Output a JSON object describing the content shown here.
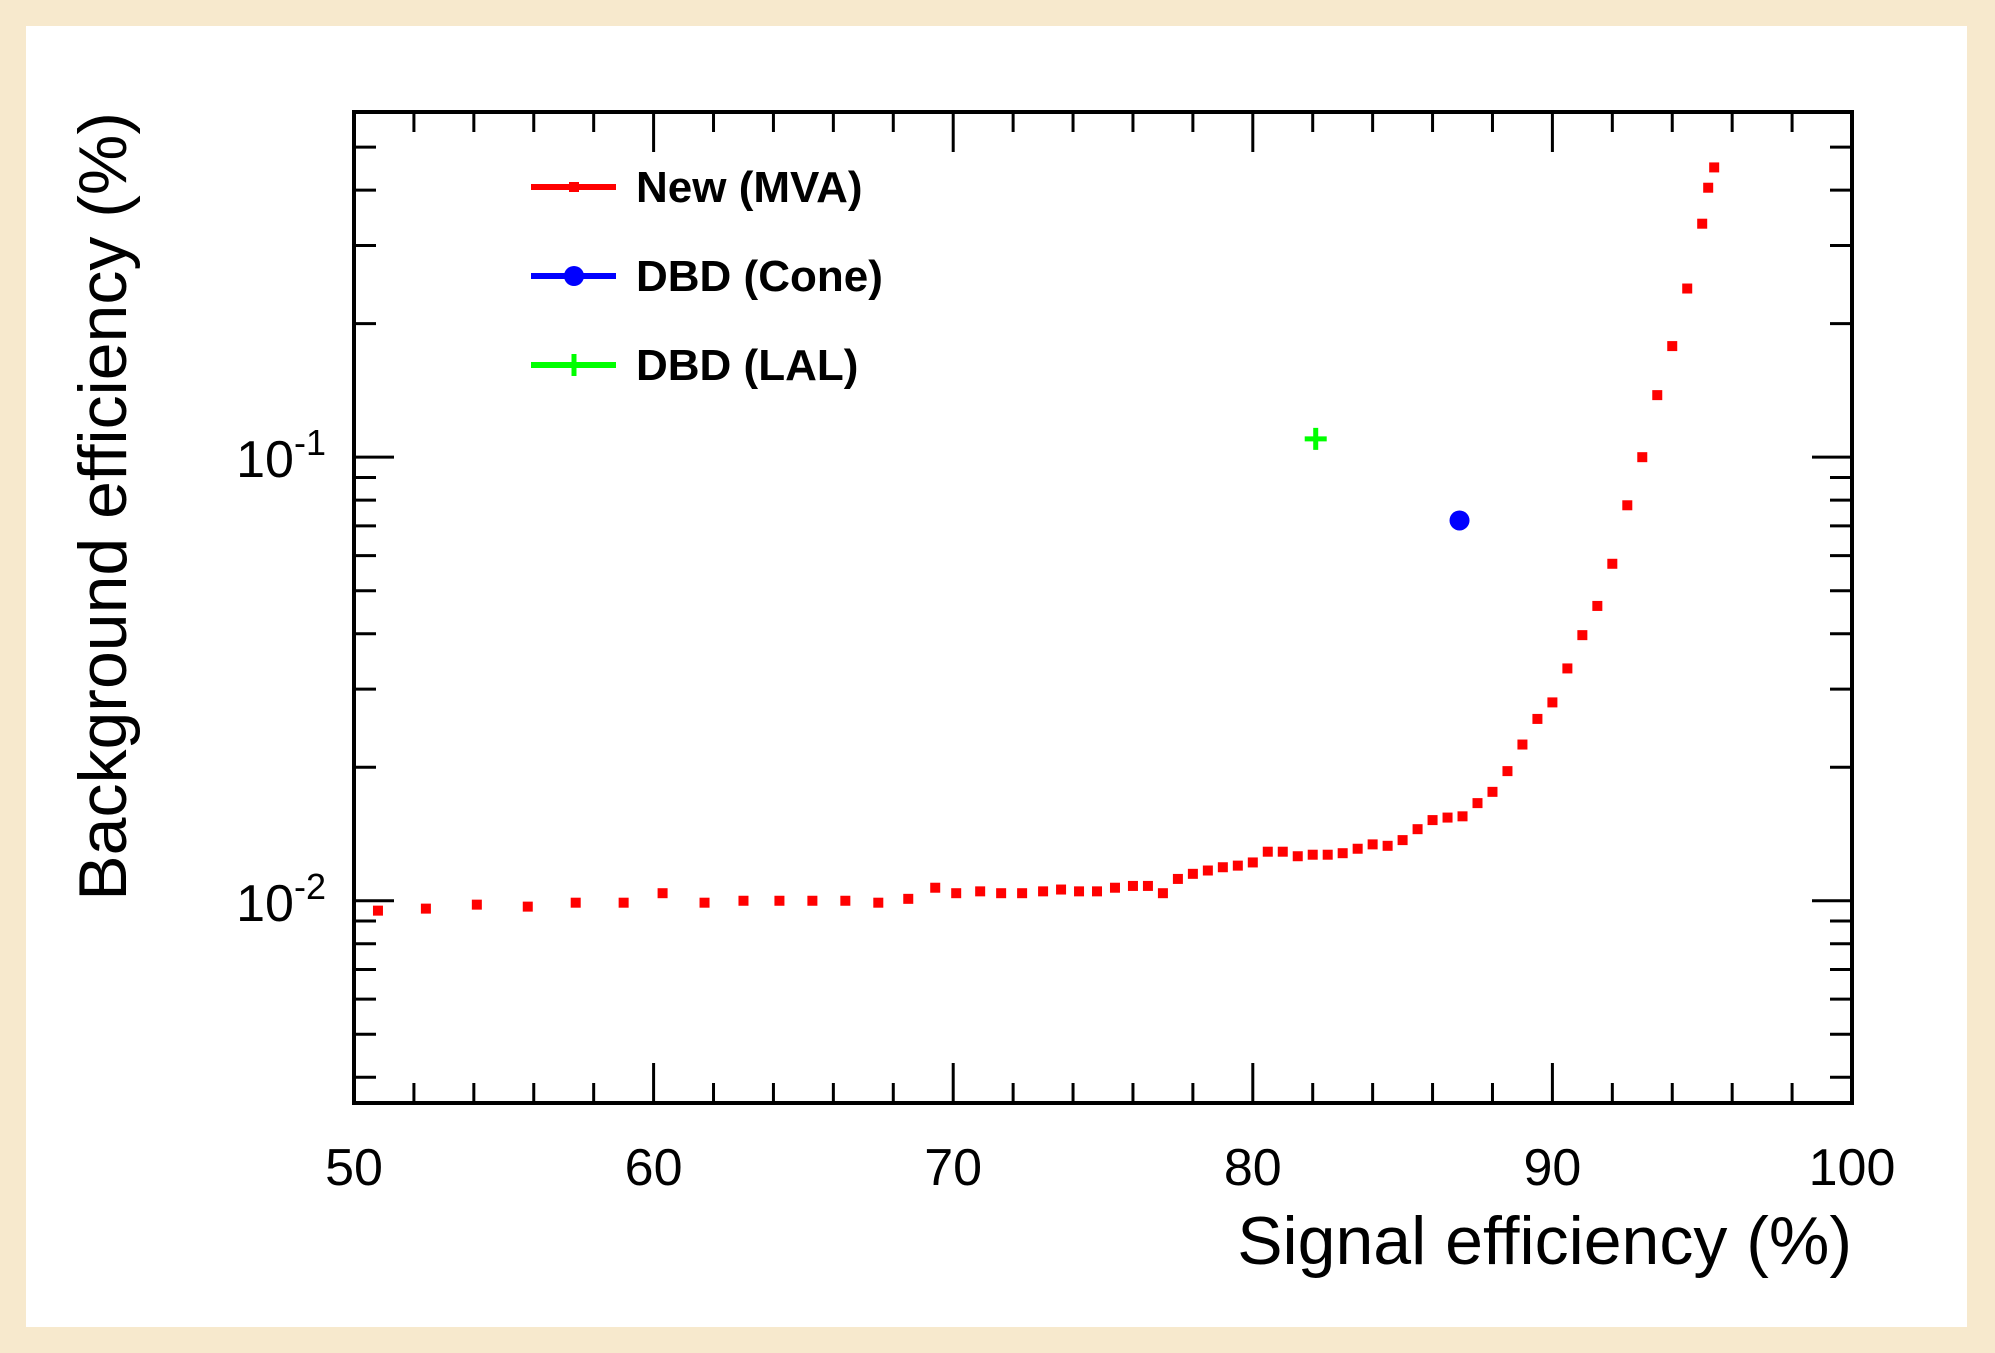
{
  "chart_data": {
    "type": "scatter",
    "title": "",
    "xlabel": "Signal efficiency (%)",
    "ylabel": "Background efficiency (%)",
    "x_range": [
      50,
      100
    ],
    "y_range": [
      0.0035,
      0.6
    ],
    "y_scale": "log",
    "x_ticks": [
      50,
      60,
      70,
      80,
      90,
      100
    ],
    "y_ticks": [
      {
        "value": 0.1,
        "base": "10",
        "exp": "-1"
      },
      {
        "value": 0.01,
        "base": "10",
        "exp": "-2"
      }
    ],
    "legend_position": "top-left",
    "series": [
      {
        "name": "New (MVA)",
        "color": "#ff0000",
        "marker": "square",
        "x": [
          50.8,
          52.4,
          54.1,
          55.8,
          57.4,
          59.0,
          60.3,
          61.7,
          63.0,
          64.2,
          65.3,
          66.4,
          67.5,
          68.5,
          69.4,
          70.1,
          70.9,
          71.6,
          72.3,
          73.0,
          73.6,
          74.2,
          74.8,
          75.4,
          76.0,
          76.5,
          77.0,
          77.5,
          78.0,
          78.5,
          79.0,
          79.5,
          80.0,
          80.5,
          81.0,
          81.5,
          82.0,
          82.5,
          83.0,
          83.5,
          84.0,
          84.5,
          85.0,
          85.5,
          86.0,
          86.5,
          87.0,
          87.5,
          88.0,
          88.5,
          89.0,
          89.5,
          90.0,
          90.5,
          91.0,
          91.5,
          92.0,
          92.5,
          93.0,
          93.5,
          94.0,
          94.5,
          95.0,
          95.2,
          95.4
        ],
        "y": [
          0.0095,
          0.0096,
          0.0098,
          0.0097,
          0.0099,
          0.0099,
          0.0104,
          0.0099,
          0.01,
          0.01,
          0.01,
          0.01,
          0.0099,
          0.0101,
          0.0107,
          0.0104,
          0.0105,
          0.0104,
          0.0104,
          0.0105,
          0.0106,
          0.0105,
          0.0105,
          0.0107,
          0.0108,
          0.0108,
          0.0104,
          0.0112,
          0.0115,
          0.0117,
          0.0119,
          0.012,
          0.0122,
          0.0129,
          0.0129,
          0.0126,
          0.0127,
          0.0127,
          0.0128,
          0.0131,
          0.0134,
          0.0133,
          0.0137,
          0.0145,
          0.0152,
          0.0154,
          0.0155,
          0.0166,
          0.0176,
          0.0196,
          0.0225,
          0.0257,
          0.028,
          0.0334,
          0.0397,
          0.0462,
          0.0575,
          0.0779,
          0.1,
          0.138,
          0.178,
          0.24,
          0.336,
          0.405,
          0.45
        ]
      },
      {
        "name": "DBD (Cone)",
        "color": "#0000ff",
        "marker": "circle",
        "x": [
          86.9
        ],
        "y": [
          0.072
        ]
      },
      {
        "name": "DBD (LAL)",
        "color": "#00ff00",
        "marker": "plus",
        "x": [
          82.1
        ],
        "y": [
          0.11
        ]
      }
    ]
  }
}
